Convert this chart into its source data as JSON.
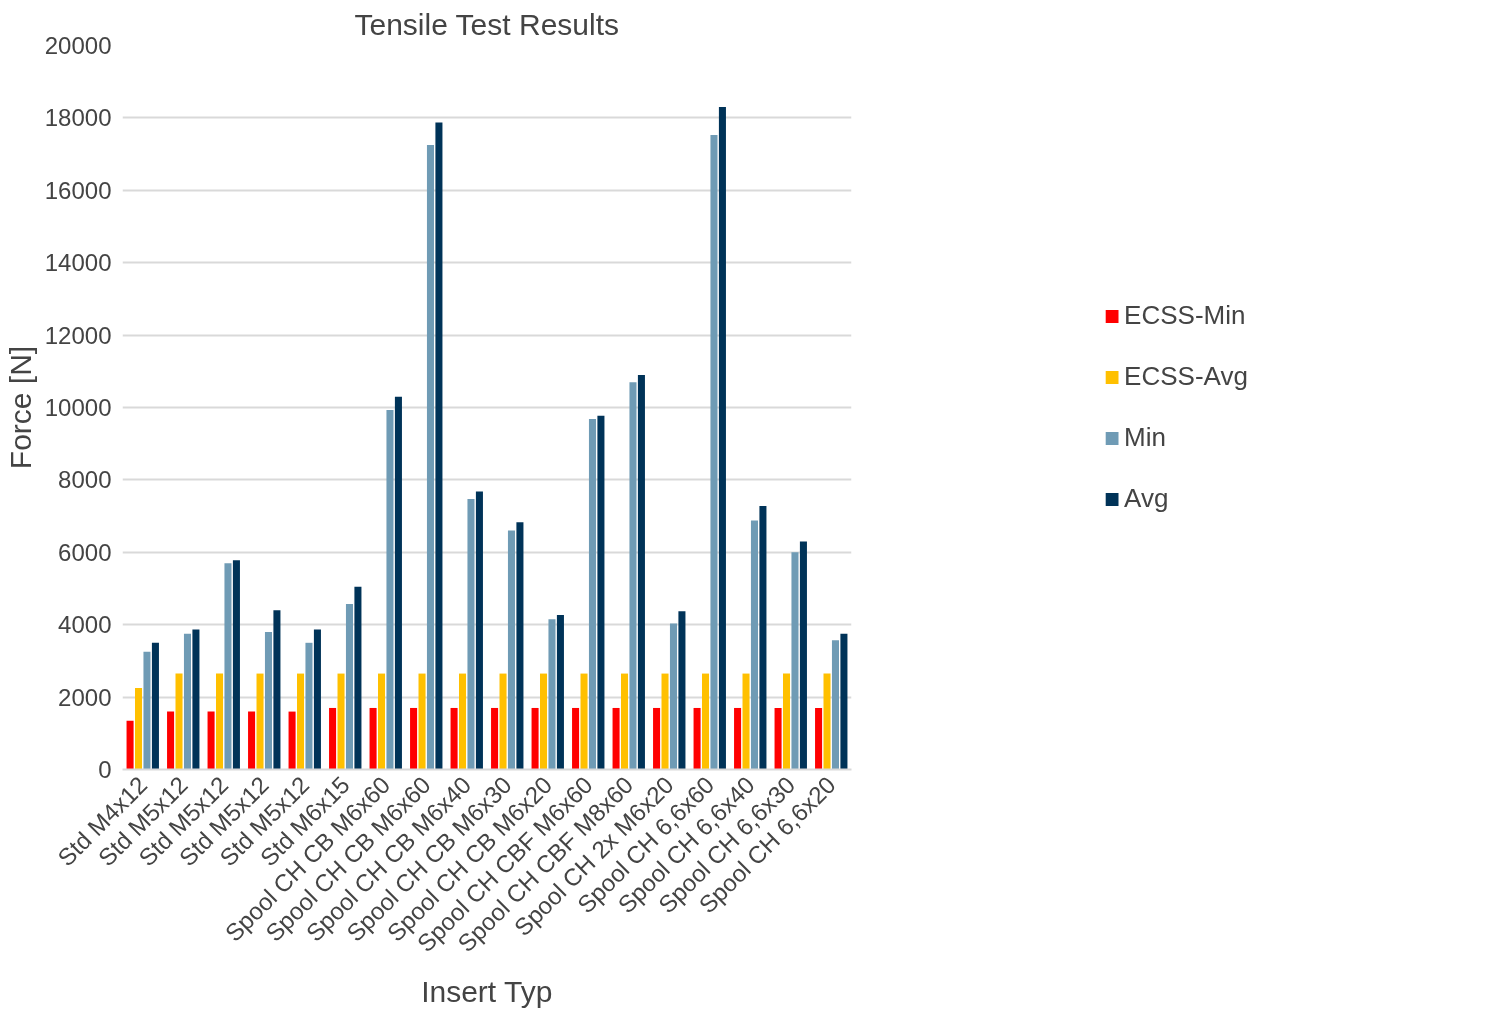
{
  "chart_data": {
    "type": "bar",
    "title": "Tensile Test Results",
    "xlabel": "Insert Typ",
    "ylabel": "Force [N]",
    "categories": [
      "Std M4x12",
      "Std M5x12",
      "Std M5x12",
      "Std M5x12",
      "Std M5x12",
      "Std M6x15",
      "Spool CH CB M6x60",
      "Spool CH CB M6x60",
      "Spool CH CB M6x40",
      "Spool CH CB M6x30",
      "Spool CH CB M6x20",
      "Spool CH CBF M6x60",
      "Spool CH CBF M8x60",
      "Spool CH 2x M6x20",
      "Spool CH 6,6x60",
      "Spool CH 6,6x40",
      "Spool CH 6,6x30",
      "Spool CH 6,6x20"
    ],
    "series": [
      {
        "name": "ECSS-Min",
        "color": "#ff0000",
        "values": [
          1350,
          1600,
          1600,
          1600,
          1600,
          1700,
          1700,
          1700,
          1700,
          1700,
          1700,
          1700,
          1700,
          1700,
          1700,
          1700,
          1700,
          1700
        ]
      },
      {
        "name": "ECSS-Avg",
        "color": "#ffc000",
        "values": [
          2250,
          2650,
          2650,
          2650,
          2650,
          2650,
          2650,
          2650,
          2650,
          2650,
          2650,
          2650,
          2650,
          2650,
          2650,
          2650,
          2650,
          2650
        ]
      },
      {
        "name": "Min",
        "color": "#6f9bb5",
        "values": [
          3250,
          3750,
          5700,
          3800,
          3500,
          4570,
          9930,
          17250,
          7470,
          6600,
          4150,
          9680,
          10700,
          4030,
          17530,
          6880,
          6000,
          3570
        ]
      },
      {
        "name": "Avg",
        "color": "#003358",
        "values": [
          3500,
          3870,
          5780,
          4400,
          3870,
          5050,
          10300,
          17870,
          7680,
          6830,
          4270,
          9770,
          10900,
          4370,
          18300,
          7280,
          6300,
          3750
        ]
      }
    ],
    "ylim": [
      0,
      20000
    ],
    "yticks": [
      0,
      2000,
      4000,
      6000,
      8000,
      10000,
      12000,
      14000,
      16000,
      18000,
      20000
    ],
    "grid": "y",
    "legend": "right"
  }
}
